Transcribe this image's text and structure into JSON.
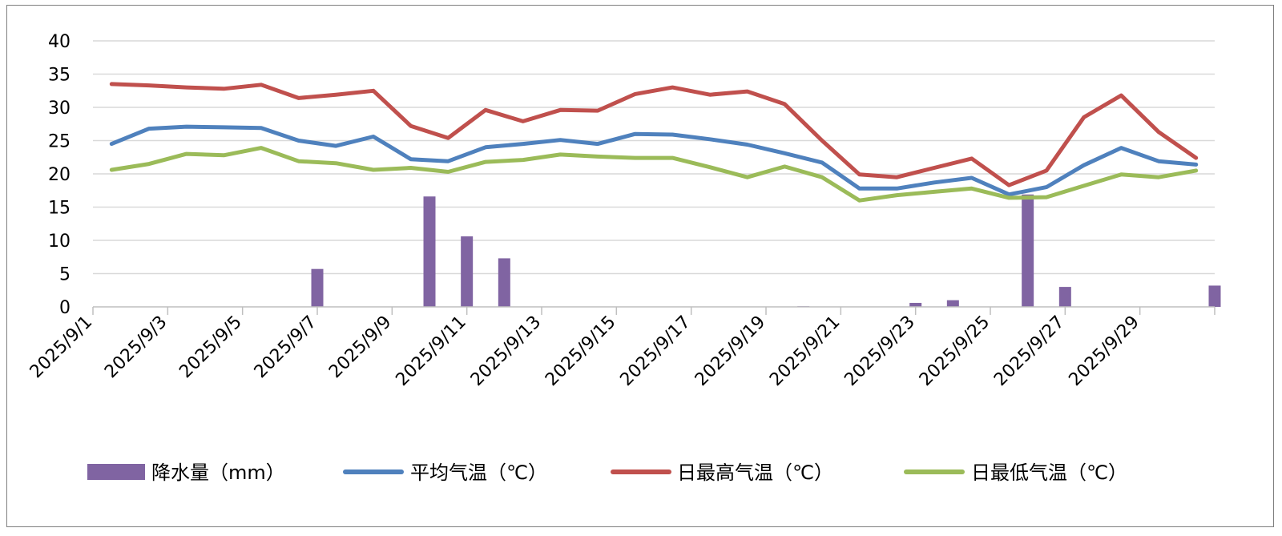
{
  "chart_data": {
    "type": "bar+line",
    "categories": [
      "2025/9/1",
      "2025/9/2",
      "2025/9/3",
      "2025/9/4",
      "2025/9/5",
      "2025/9/6",
      "2025/9/7",
      "2025/9/8",
      "2025/9/9",
      "2025/9/10",
      "2025/9/11",
      "2025/9/12",
      "2025/9/13",
      "2025/9/14",
      "2025/9/15",
      "2025/9/16",
      "2025/9/17",
      "2025/9/18",
      "2025/9/19",
      "2025/9/20",
      "2025/9/21",
      "2025/9/22",
      "2025/9/23",
      "2025/9/24",
      "2025/9/25",
      "2025/9/26",
      "2025/9/27",
      "2025/9/28",
      "2025/9/29",
      "2025/9/30"
    ],
    "xtick_labels": [
      "2025/9/1",
      "2025/9/3",
      "2025/9/5",
      "2025/9/7",
      "2025/9/9",
      "2025/9/11",
      "2025/9/13",
      "2025/9/15",
      "2025/9/17",
      "2025/9/19",
      "2025/9/21",
      "2025/9/23",
      "2025/9/25",
      "2025/9/27",
      "2025/9/29"
    ],
    "yticks": [
      "0",
      "5",
      "10",
      "15",
      "20",
      "25",
      "30",
      "35",
      "40"
    ],
    "ylim": [
      0,
      40
    ],
    "grid": true,
    "legend_position": "bottom",
    "series": [
      {
        "name": "降水量（mm）",
        "kind": "bar",
        "color": "#8064a2",
        "values": [
          0,
          0,
          0,
          0,
          0,
          5.7,
          0,
          0,
          16.6,
          10.6,
          7.3,
          0,
          0,
          0,
          0,
          0,
          0,
          0,
          0.1,
          0,
          0,
          0.6,
          1.0,
          0,
          16.9,
          3.0,
          0,
          0,
          0,
          3.2
        ]
      },
      {
        "name": "平均气温（℃）",
        "kind": "line",
        "color": "#4f81bd",
        "values": [
          24.5,
          26.8,
          27.1,
          27.0,
          26.9,
          25.0,
          24.2,
          25.6,
          22.2,
          21.9,
          24.0,
          24.5,
          25.1,
          24.5,
          26.0,
          25.9,
          25.2,
          24.4,
          23.1,
          21.7,
          17.8,
          17.8,
          18.7,
          19.4,
          16.9,
          18.0,
          21.3,
          23.9,
          21.9,
          21.4
        ]
      },
      {
        "name": "日最高气温（℃）",
        "kind": "line",
        "color": "#c0504d",
        "values": [
          33.5,
          33.3,
          33.0,
          32.8,
          33.4,
          31.4,
          31.9,
          32.5,
          27.2,
          25.4,
          29.6,
          27.9,
          29.6,
          29.5,
          32.0,
          33.0,
          31.9,
          32.4,
          30.5,
          25.0,
          19.9,
          19.5,
          20.9,
          22.3,
          18.3,
          20.5,
          28.5,
          31.8,
          26.3,
          22.4
        ]
      },
      {
        "name": "日最低气温（℃）",
        "kind": "line",
        "color": "#9bbb59",
        "values": [
          20.6,
          21.5,
          23.0,
          22.8,
          23.9,
          21.9,
          21.6,
          20.6,
          20.9,
          20.3,
          21.8,
          22.1,
          22.9,
          22.6,
          22.4,
          22.4,
          21.0,
          19.5,
          21.1,
          19.5,
          16.0,
          16.8,
          17.3,
          17.8,
          16.4,
          16.5,
          18.2,
          19.9,
          19.5,
          20.5
        ]
      }
    ]
  }
}
